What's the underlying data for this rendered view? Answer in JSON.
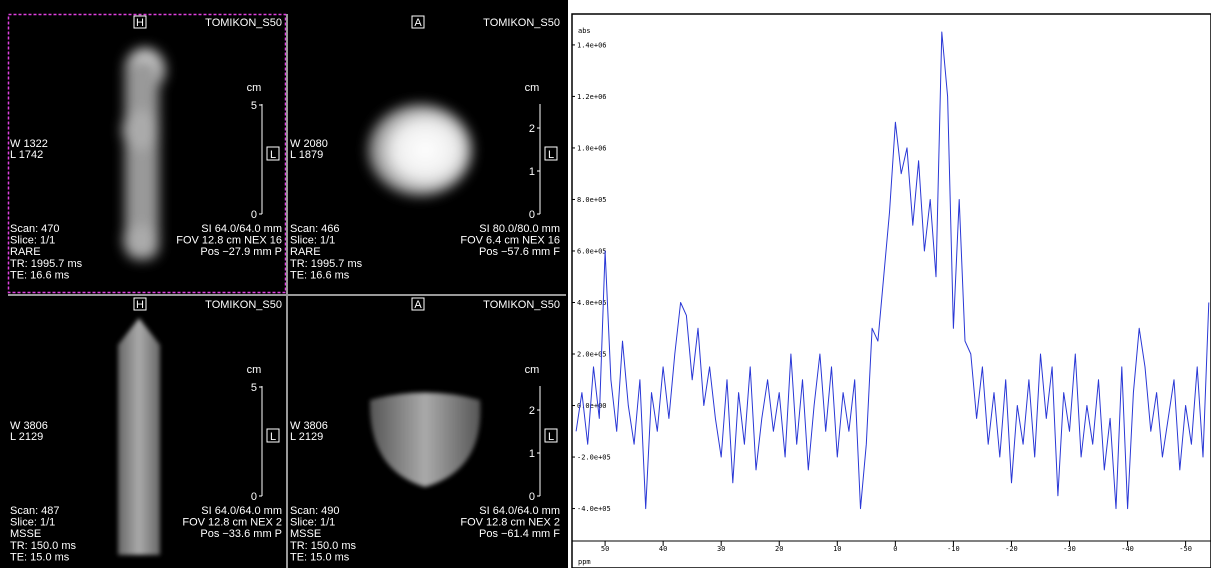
{
  "panels": [
    {
      "orientation": "H",
      "name": "TOMIKON_S50",
      "unit": "cm",
      "scale": [
        "5",
        "0"
      ],
      "side": "L",
      "window": [
        "W 1322",
        "L 1742"
      ],
      "info_left": [
        "Scan: 470",
        "Slice: 1/1",
        "RARE",
        "TR: 1995.7 ms",
        "TE: 16.6 ms"
      ],
      "info_right": [
        "SI 64.0/64.0 mm",
        "FOV 12.8 cm NEX 16",
        "Pos −27.9 mm P"
      ]
    },
    {
      "orientation": "A",
      "name": "TOMIKON_S50",
      "unit": "cm",
      "scale": [
        "2",
        "1",
        "0"
      ],
      "side": "L",
      "window": [
        "W 2080",
        "L 1879"
      ],
      "info_left": [
        "Scan: 466",
        "Slice: 1/1",
        "RARE",
        "TR: 1995.7 ms",
        "TE: 16.6 ms"
      ],
      "info_right": [
        "SI 80.0/80.0 mm",
        "FOV  6.4 cm NEX 16",
        "Pos −57.6 mm F"
      ]
    },
    {
      "orientation": "H",
      "name": "TOMIKON_S50",
      "unit": "cm",
      "scale": [
        "5",
        "0"
      ],
      "side": "L",
      "window": [
        "W 3806",
        "L 2129"
      ],
      "info_left": [
        "Scan: 487",
        "Slice: 1/1",
        "MSSE",
        "TR: 150.0 ms",
        "TE: 15.0 ms"
      ],
      "info_right": [
        "SI 64.0/64.0 mm",
        "FOV 12.8 cm NEX 2",
        "Pos −33.6 mm P"
      ]
    },
    {
      "orientation": "A",
      "name": "TOMIKON_S50",
      "unit": "cm",
      "scale": [
        "2",
        "1",
        "0"
      ],
      "side": "L",
      "window": [
        "W 3806",
        "L 2129"
      ],
      "info_left": [
        "Scan: 490",
        "Slice: 1/1",
        "MSSE",
        "TR: 150.0 ms",
        "TE: 15.0 ms"
      ],
      "info_right": [
        "SI 64.0/64.0 mm",
        "FOV 12.8 cm NEX 2",
        "Pos −61.4 mm F"
      ]
    }
  ],
  "chart_data": {
    "type": "line",
    "y_label": "abs",
    "x_label": "ppm",
    "color": "#2a38d6",
    "xlim": [
      55.7,
      -54.2
    ],
    "ylim": [
      -425000,
      1520000
    ],
    "xticks": [
      50,
      40,
      30,
      20,
      10,
      0,
      -10,
      -20,
      -30,
      -40,
      -50
    ],
    "yticks": [
      {
        "value": 1400000,
        "label": "1.4e+06"
      },
      {
        "value": 1200000,
        "label": "1.2e+06"
      },
      {
        "value": 1000000,
        "label": "1.0e+06"
      },
      {
        "value": 800000,
        "label": "8.0e+05"
      },
      {
        "value": 600000,
        "label": "6.0e+05"
      },
      {
        "value": 400000,
        "label": "4.0e+05"
      },
      {
        "value": 200000,
        "label": "2.0e+05"
      },
      {
        "value": 0,
        "label": "0.0e+00"
      },
      {
        "value": -200000,
        "label": "-2.0e+05"
      },
      {
        "value": -400000,
        "label": "-4.0e+05"
      }
    ],
    "x": [
      55,
      54,
      53,
      52,
      51,
      50,
      49,
      48,
      47,
      46,
      45,
      44,
      43,
      42,
      41,
      40,
      39,
      38,
      37,
      36,
      35,
      34,
      33,
      32,
      31,
      30,
      29,
      28,
      27,
      26,
      25,
      24,
      23,
      22,
      21,
      20,
      19,
      18,
      17,
      16,
      15,
      14,
      13,
      12,
      11,
      10,
      9,
      8,
      7,
      6,
      5,
      4,
      3,
      2,
      1,
      0,
      -1,
      -2,
      -3,
      -4,
      -5,
      -6,
      -7,
      -8,
      -9,
      -10,
      -11,
      -12,
      -13,
      -14,
      -15,
      -16,
      -17,
      -18,
      -19,
      -20,
      -21,
      -22,
      -23,
      -24,
      -25,
      -26,
      -27,
      -28,
      -29,
      -30,
      -31,
      -32,
      -33,
      -34,
      -35,
      -36,
      -37,
      -38,
      -39,
      -40,
      -41,
      -42,
      -43,
      -44,
      -45,
      -46,
      -47,
      -48,
      -49,
      -50,
      -51,
      -52,
      -53,
      -54
    ],
    "values": [
      -100000,
      50000,
      -150000,
      150000,
      -50000,
      600000,
      100000,
      -100000,
      250000,
      0,
      -150000,
      100000,
      -400000,
      50000,
      -100000,
      150000,
      -50000,
      200000,
      400000,
      350000,
      100000,
      300000,
      0,
      150000,
      -50000,
      -200000,
      100000,
      -300000,
      50000,
      -150000,
      150000,
      -250000,
      -50000,
      100000,
      -100000,
      50000,
      -200000,
      200000,
      -150000,
      100000,
      -250000,
      0,
      200000,
      -100000,
      150000,
      -200000,
      50000,
      -100000,
      100000,
      -400000,
      -150000,
      300000,
      250000,
      500000,
      750000,
      1100000,
      900000,
      1000000,
      700000,
      950000,
      600000,
      800000,
      500000,
      1450000,
      1200000,
      300000,
      800000,
      250000,
      200000,
      -50000,
      150000,
      -150000,
      50000,
      -200000,
      100000,
      -300000,
      0,
      -150000,
      100000,
      -200000,
      200000,
      -50000,
      150000,
      -350000,
      50000,
      -100000,
      200000,
      -200000,
      0,
      -150000,
      100000,
      -250000,
      -50000,
      -400000,
      150000,
      -400000,
      50000,
      300000,
      150000,
      -100000,
      50000,
      -200000,
      -50000,
      100000,
      -250000,
      0,
      -150000,
      150000,
      -200000,
      400000
    ]
  }
}
